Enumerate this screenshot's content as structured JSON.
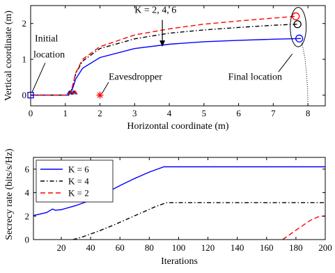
{
  "chart_data": [
    {
      "type": "line",
      "xlabel": "Horizontal coordinate (m)",
      "ylabel": "Vertical coordinate (m)",
      "xlim": [
        0,
        8.5
      ],
      "ylim": [
        -0.3,
        2.5
      ],
      "xticks": [
        0,
        1,
        2,
        3,
        4,
        5,
        6,
        7,
        8
      ],
      "yticks": [
        0,
        1,
        2
      ],
      "grid": false,
      "series": [
        {
          "key": "K6",
          "color": "#0000ff",
          "dash": "none",
          "x": [
            0,
            1.1,
            1.2,
            1.3,
            1.5,
            2,
            3,
            4,
            5,
            6,
            7,
            7.8
          ],
          "y": [
            0,
            0,
            0.15,
            0.45,
            0.75,
            1.05,
            1.3,
            1.42,
            1.49,
            1.53,
            1.56,
            1.58
          ]
        },
        {
          "key": "K4",
          "color": "#000000",
          "dash": "6,3,1.5,3",
          "x": [
            0,
            1.1,
            1.2,
            1.3,
            1.5,
            2,
            3,
            4,
            5,
            6,
            7,
            7.7
          ],
          "y": [
            0,
            0,
            0.2,
            0.6,
            0.95,
            1.3,
            1.57,
            1.73,
            1.82,
            1.89,
            1.95,
            1.98
          ]
        },
        {
          "key": "K2",
          "color": "#ff0000",
          "dash": "7,4",
          "x": [
            0,
            1.1,
            1.2,
            1.3,
            1.5,
            2,
            3,
            4,
            5,
            6,
            7,
            7.65
          ],
          "y": [
            0,
            0,
            0.22,
            0.62,
            1.0,
            1.35,
            1.68,
            1.85,
            1.98,
            2.07,
            2.15,
            2.2
          ]
        }
      ],
      "boundary_curve": {
        "x": [
          8.0,
          7.99,
          7.96,
          7.92,
          7.86,
          7.8
        ],
        "y": [
          -0.3,
          0.2,
          0.6,
          1.0,
          1.3,
          1.55
        ]
      },
      "markers": [
        {
          "type": "initial",
          "x": 0,
          "y": 0
        },
        {
          "type": "eavesdropper",
          "x": 2,
          "y": 0
        },
        {
          "type": "final",
          "x": 7.75,
          "y": 1.58,
          "color": "#0000ff"
        },
        {
          "type": "final",
          "x": 7.7,
          "y": 1.98,
          "color": "#000000"
        },
        {
          "type": "final",
          "x": 7.65,
          "y": 2.2,
          "color": "#ff0000"
        }
      ],
      "annotations": {
        "initial": [
          "Initial",
          "location"
        ],
        "eavesdropper": "Eavesdropper",
        "k_values": "K = 2, 4, 6",
        "final": "Final location"
      }
    },
    {
      "type": "line",
      "xlabel": "Iterations",
      "ylabel": "Secrecy rate (bits/s/Hz)",
      "xlim": [
        1,
        200
      ],
      "ylim": [
        0,
        7
      ],
      "xticks": [
        20,
        40,
        60,
        80,
        100,
        120,
        140,
        160,
        180,
        200
      ],
      "yticks": [
        0,
        2,
        4,
        6
      ],
      "grid": false,
      "legend": "top-left",
      "series": [
        {
          "name": "K = 6",
          "color": "#0000ff",
          "dash": "none",
          "x": [
            1,
            10,
            14,
            16,
            20,
            30,
            40,
            50,
            60,
            70,
            80,
            90,
            92,
            200
          ],
          "y": [
            2.05,
            2.3,
            2.6,
            2.5,
            2.55,
            2.9,
            3.35,
            3.95,
            4.6,
            5.2,
            5.75,
            6.2,
            6.2,
            6.2
          ]
        },
        {
          "name": "K = 4",
          "color": "#000000",
          "dash": "6,3,1.5,3",
          "x": [
            28,
            35,
            45,
            55,
            65,
            75,
            85,
            92,
            200
          ],
          "y": [
            0,
            0.25,
            0.7,
            1.2,
            1.75,
            2.3,
            2.85,
            3.15,
            3.15
          ]
        },
        {
          "name": "K = 2",
          "color": "#ff0000",
          "dash": "7,4",
          "x": [
            171,
            180,
            190,
            196,
            200
          ],
          "y": [
            0,
            0.8,
            1.65,
            1.98,
            2.0
          ]
        }
      ]
    }
  ]
}
